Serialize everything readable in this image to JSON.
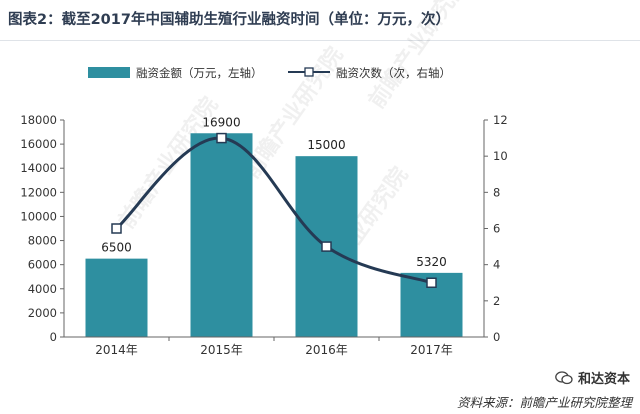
{
  "title": "图表2：截至2017年中国辅助生殖行业融资时间（单位：万元，次）",
  "source_text": "资料来源：前瞻产业研究院整理",
  "brand_text": "和达资本",
  "watermark_text": "前瞻产业研究院",
  "colors": {
    "bar": "#2e8fa0",
    "line": "#253a54",
    "marker_fill": "#ffffff",
    "axis": "#666666",
    "grid": "#dddddd"
  },
  "chart_data": {
    "type": "bar",
    "categories": [
      "2014年",
      "2015年",
      "2016年",
      "2017年"
    ],
    "series": [
      {
        "name": "融资金额（万元，左轴）",
        "type": "bar",
        "axis": "left",
        "values": [
          6500,
          16900,
          15000,
          5320
        ]
      },
      {
        "name": "融资次数（次，右轴）",
        "type": "line",
        "axis": "right",
        "smooth": true,
        "values": [
          6,
          11,
          5,
          3
        ]
      }
    ],
    "bar_data_labels": [
      "6500",
      "16900",
      "15000",
      "5320"
    ],
    "y_left": {
      "min": 0,
      "max": 18000,
      "step": 2000,
      "ticks": [
        "0",
        "2000",
        "4000",
        "6000",
        "8000",
        "10000",
        "12000",
        "14000",
        "16000",
        "18000"
      ]
    },
    "y_right": {
      "min": 0,
      "max": 12,
      "step": 2,
      "ticks": [
        "0",
        "2",
        "4",
        "6",
        "8",
        "10",
        "12"
      ]
    },
    "grid": false,
    "legend": "top"
  }
}
